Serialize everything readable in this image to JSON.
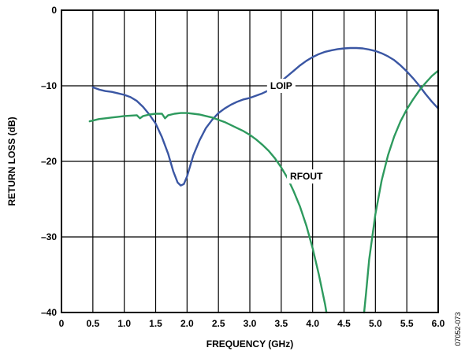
{
  "chart_data": {
    "type": "line",
    "xlabel": "FREQUENCY (GHz)",
    "ylabel": "RETURN LOSS (dB)",
    "xlim": [
      0,
      6
    ],
    "ylim": [
      -40,
      0
    ],
    "grid": true,
    "x_ticks": [
      0,
      0.5,
      1.0,
      1.5,
      2.0,
      2.5,
      3.0,
      3.5,
      4.0,
      4.5,
      5.0,
      5.5,
      6.0
    ],
    "x_tick_labels": [
      "0",
      "0.5",
      "1.0",
      "1.5",
      "2.0",
      "2.5",
      "3.0",
      "3.5",
      "4.0",
      "4.5",
      "5.0",
      "5.5",
      "6.0"
    ],
    "y_ticks": [
      0,
      -10,
      -20,
      -30,
      -40
    ],
    "y_tick_labels": [
      "0",
      "–10",
      "–20",
      "–30",
      "–40"
    ],
    "figure_id": "07052-073",
    "series": [
      {
        "name": "LOIP",
        "color": "#3a56a3",
        "label_at": [
          3.5,
          -10
        ],
        "points": [
          [
            0.5,
            -10.2
          ],
          [
            0.6,
            -10.5
          ],
          [
            0.7,
            -10.7
          ],
          [
            0.8,
            -10.8
          ],
          [
            0.9,
            -11.0
          ],
          [
            1.0,
            -11.2
          ],
          [
            1.1,
            -11.5
          ],
          [
            1.2,
            -12.0
          ],
          [
            1.3,
            -12.8
          ],
          [
            1.4,
            -13.8
          ],
          [
            1.5,
            -15.0
          ],
          [
            1.6,
            -16.8
          ],
          [
            1.7,
            -19.0
          ],
          [
            1.78,
            -21.3
          ],
          [
            1.85,
            -22.8
          ],
          [
            1.9,
            -23.2
          ],
          [
            1.95,
            -23.0
          ],
          [
            2.0,
            -22.0
          ],
          [
            2.05,
            -20.6
          ],
          [
            2.1,
            -19.2
          ],
          [
            2.2,
            -17.2
          ],
          [
            2.3,
            -15.6
          ],
          [
            2.4,
            -14.5
          ],
          [
            2.5,
            -13.6
          ],
          [
            2.6,
            -13.0
          ],
          [
            2.7,
            -12.5
          ],
          [
            2.8,
            -12.1
          ],
          [
            2.9,
            -11.8
          ],
          [
            3.0,
            -11.6
          ],
          [
            3.1,
            -11.3
          ],
          [
            3.2,
            -11.0
          ],
          [
            3.3,
            -10.6
          ],
          [
            3.4,
            -10.1
          ],
          [
            3.5,
            -9.4
          ],
          [
            3.6,
            -8.7
          ],
          [
            3.7,
            -8.0
          ],
          [
            3.8,
            -7.3
          ],
          [
            3.9,
            -6.7
          ],
          [
            4.0,
            -6.2
          ],
          [
            4.1,
            -5.8
          ],
          [
            4.2,
            -5.5
          ],
          [
            4.3,
            -5.3
          ],
          [
            4.4,
            -5.15
          ],
          [
            4.5,
            -5.05
          ],
          [
            4.6,
            -5.0
          ],
          [
            4.7,
            -5.0
          ],
          [
            4.8,
            -5.05
          ],
          [
            4.9,
            -5.2
          ],
          [
            5.0,
            -5.4
          ],
          [
            5.1,
            -5.7
          ],
          [
            5.2,
            -6.1
          ],
          [
            5.3,
            -6.6
          ],
          [
            5.4,
            -7.3
          ],
          [
            5.5,
            -8.1
          ],
          [
            5.6,
            -9.0
          ],
          [
            5.7,
            -10.0
          ],
          [
            5.8,
            -11.1
          ],
          [
            5.9,
            -12.1
          ],
          [
            6.0,
            -13.0
          ]
        ]
      },
      {
        "name": "RFOUT",
        "color": "#2e9a5e",
        "label_at": [
          3.9,
          -22
        ],
        "points": [
          [
            0.45,
            -14.7
          ],
          [
            0.5,
            -14.6
          ],
          [
            0.6,
            -14.4
          ],
          [
            0.7,
            -14.3
          ],
          [
            0.8,
            -14.2
          ],
          [
            0.9,
            -14.1
          ],
          [
            1.0,
            -14.0
          ],
          [
            1.1,
            -13.95
          ],
          [
            1.2,
            -13.9
          ],
          [
            1.25,
            -14.3
          ],
          [
            1.3,
            -14.0
          ],
          [
            1.4,
            -13.8
          ],
          [
            1.5,
            -13.7
          ],
          [
            1.6,
            -13.7
          ],
          [
            1.65,
            -14.3
          ],
          [
            1.7,
            -13.9
          ],
          [
            1.8,
            -13.7
          ],
          [
            1.9,
            -13.6
          ],
          [
            2.0,
            -13.6
          ],
          [
            2.1,
            -13.7
          ],
          [
            2.2,
            -13.8
          ],
          [
            2.3,
            -14.0
          ],
          [
            2.4,
            -14.2
          ],
          [
            2.5,
            -14.5
          ],
          [
            2.6,
            -14.8
          ],
          [
            2.7,
            -15.2
          ],
          [
            2.8,
            -15.6
          ],
          [
            2.9,
            -16.0
          ],
          [
            3.0,
            -16.5
          ],
          [
            3.1,
            -17.1
          ],
          [
            3.2,
            -17.8
          ],
          [
            3.3,
            -18.6
          ],
          [
            3.4,
            -19.6
          ],
          [
            3.5,
            -20.8
          ],
          [
            3.6,
            -22.2
          ],
          [
            3.7,
            -24.0
          ],
          [
            3.8,
            -26.0
          ],
          [
            3.9,
            -28.5
          ],
          [
            4.0,
            -31.5
          ],
          [
            4.1,
            -35.0
          ],
          [
            4.2,
            -39.0
          ],
          [
            4.22,
            -40.0
          ],
          [
            null,
            null
          ],
          [
            4.82,
            -40.0
          ],
          [
            4.85,
            -37.5
          ],
          [
            4.9,
            -33.0
          ],
          [
            5.0,
            -27.0
          ],
          [
            5.1,
            -22.5
          ],
          [
            5.2,
            -19.2
          ],
          [
            5.3,
            -16.7
          ],
          [
            5.4,
            -14.7
          ],
          [
            5.5,
            -13.1
          ],
          [
            5.6,
            -11.8
          ],
          [
            5.7,
            -10.6
          ],
          [
            5.8,
            -9.6
          ],
          [
            5.9,
            -8.7
          ],
          [
            6.0,
            -8.0
          ]
        ]
      }
    ]
  }
}
